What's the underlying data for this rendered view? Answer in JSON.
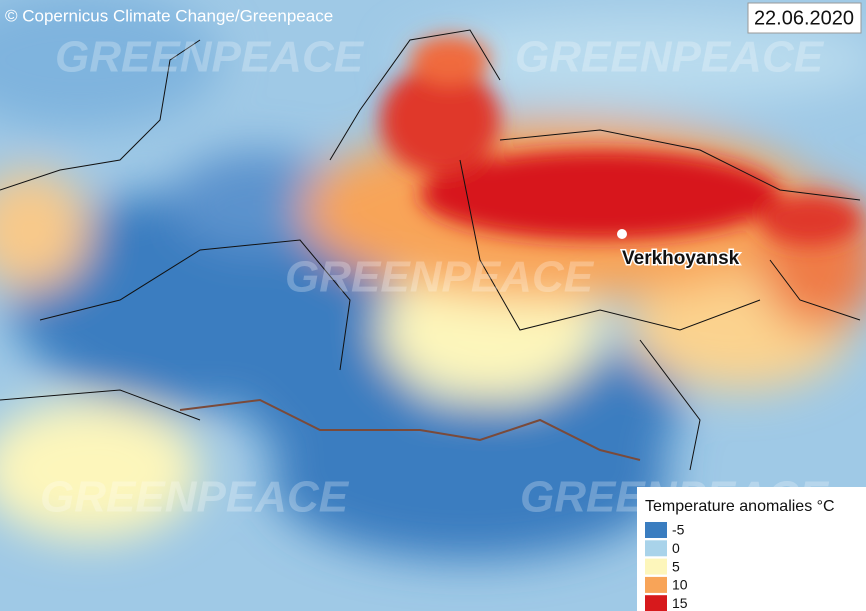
{
  "credit": "© Copernicus Climate Change/Greenpeace",
  "date": "22.06.2020",
  "watermark": "GREENPEACE",
  "place": {
    "label": "Verkhoyansk"
  },
  "legend": {
    "title": "Temperature anomalies °C",
    "items": [
      {
        "value": -5,
        "color": "#3a7dc0"
      },
      {
        "value": 0,
        "color": "#a9d3ea"
      },
      {
        "value": 5,
        "color": "#fdf6bb"
      },
      {
        "value": 10,
        "color": "#f8a458"
      },
      {
        "value": 15,
        "color": "#d7191c"
      }
    ]
  }
}
